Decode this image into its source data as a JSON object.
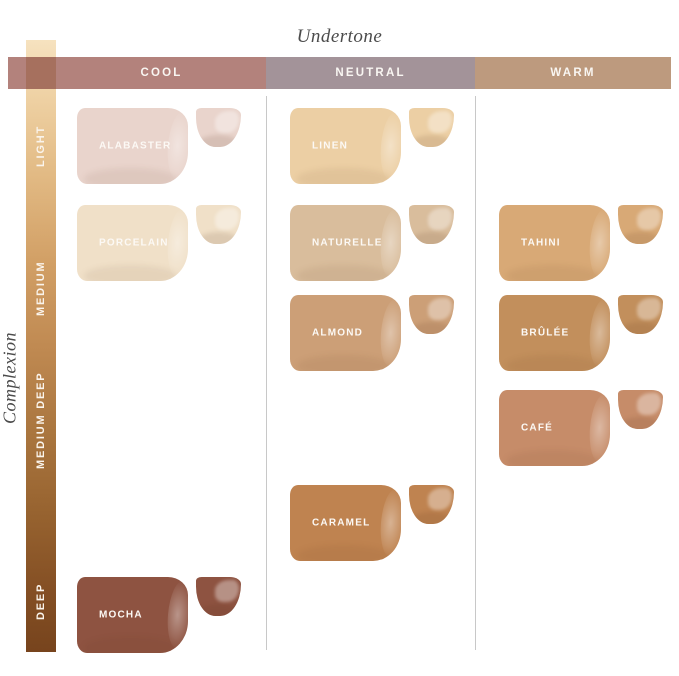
{
  "axes": {
    "x_title": "Undertone",
    "y_title": "Complexion"
  },
  "undertone_columns": [
    {
      "label": "COOL",
      "color": "#b3827c"
    },
    {
      "label": "NEUTRAL",
      "color": "#a39399"
    },
    {
      "label": "WARM",
      "color": "#bd9a7e"
    }
  ],
  "complexion_rows": [
    {
      "label": "LIGHT"
    },
    {
      "label": "MEDIUM"
    },
    {
      "label": "MEDIUM DEEP"
    },
    {
      "label": "DEEP"
    }
  ],
  "colors": {
    "bar_intersection": "#a6705e",
    "column_divider": "#c8c8c8",
    "complexion_bar_top": "#f6e2bf",
    "complexion_bar_bottom": "#77441d",
    "axis_title_text": "#4b4b4b",
    "swatch_label_text": "#fcf9f5"
  },
  "chart_data": {
    "type": "heatmap",
    "title": "",
    "xlabel": "Undertone",
    "ylabel": "Complexion",
    "x_categories": [
      "COOL",
      "NEUTRAL",
      "WARM"
    ],
    "y_categories": [
      "LIGHT",
      "MEDIUM",
      "MEDIUM DEEP",
      "DEEP"
    ],
    "legend": "none",
    "points": [
      {
        "shade": "ALABASTER",
        "undertone": "COOL",
        "complexion": "LIGHT",
        "color": "#e9d4cc",
        "grid_col": 0,
        "grid_row": 0
      },
      {
        "shade": "LINEN",
        "undertone": "NEUTRAL",
        "complexion": "LIGHT",
        "color": "#eccfa4",
        "grid_col": 1,
        "grid_row": 0
      },
      {
        "shade": "PORCELAIN",
        "undertone": "COOL",
        "complexion": "MEDIUM",
        "color": "#f0e0c8",
        "grid_col": 0,
        "grid_row": 1
      },
      {
        "shade": "NATURELLE",
        "undertone": "NEUTRAL",
        "complexion": "MEDIUM",
        "color": "#d9bd9c",
        "grid_col": 1,
        "grid_row": 1
      },
      {
        "shade": "TAHINI",
        "undertone": "WARM",
        "complexion": "MEDIUM",
        "color": "#d8a976",
        "grid_col": 2,
        "grid_row": 1
      },
      {
        "shade": "ALMOND",
        "undertone": "NEUTRAL",
        "complexion": "MEDIUM",
        "color": "#cc9f77",
        "grid_col": 1,
        "grid_row": 2
      },
      {
        "shade": "BRÛLÉE",
        "undertone": "WARM",
        "complexion": "MEDIUM",
        "color": "#c28f5c",
        "grid_col": 2,
        "grid_row": 2
      },
      {
        "shade": "CAFÉ",
        "undertone": "WARM",
        "complexion": "MEDIUM DEEP",
        "color": "#c68c69",
        "grid_col": 2,
        "grid_row": 3
      },
      {
        "shade": "CARAMEL",
        "undertone": "NEUTRAL",
        "complexion": "MEDIUM DEEP",
        "color": "#bf8350",
        "grid_col": 1,
        "grid_row": 4
      },
      {
        "shade": "MOCHA",
        "undertone": "COOL",
        "complexion": "DEEP",
        "color": "#8e5341",
        "grid_col": 0,
        "grid_row": 5
      }
    ]
  }
}
